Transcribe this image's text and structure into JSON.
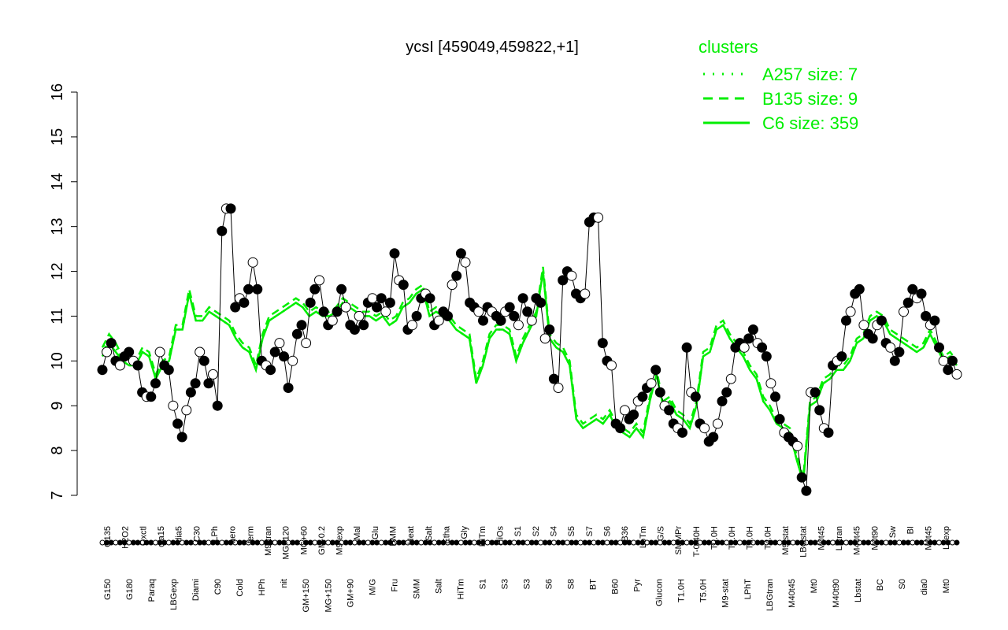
{
  "chart_data": {
    "type": "line",
    "title": "ycsI [459049,459822,+1]",
    "ylim": [
      7,
      16
    ],
    "yticks": [
      7,
      8,
      9,
      10,
      11,
      12,
      13,
      14,
      15,
      16
    ],
    "ylabel": "",
    "xlabel": "",
    "grid": false,
    "legend": {
      "title": "clusters",
      "position": "top-right",
      "color": "#00ee00",
      "entries": [
        {
          "label": "A257 size: 7",
          "style": "dotted"
        },
        {
          "label": "B135 size: 9",
          "style": "dashed"
        },
        {
          "label": "C6 size: 359",
          "style": "solid"
        }
      ]
    },
    "x_labels_upper": [
      "G135",
      "H2O2",
      "Oxctl",
      "dia15",
      "dia5",
      "C30",
      "LPh",
      "aero",
      "ferm",
      "M9-tran",
      "MG+120",
      "MG+60",
      "GM-0.2",
      "M9-exp",
      "Mal",
      "Glu",
      "BMM",
      "Heat",
      "Salt",
      "Etha",
      "Gly",
      "HiTm",
      "HiOs",
      "S1",
      "S2",
      "S4",
      "S5",
      "S7",
      "S6",
      "B36",
      "LoTm",
      "G/S",
      "SMMPr",
      "T-0.40H",
      "T0.0H",
      "T2.0H",
      "T3.0H",
      "T4.0H",
      "M9-stat",
      "LBGstat",
      "M0t45",
      "Lbtran",
      "M40t45",
      "M0t90",
      "Sw",
      "BI",
      "M0t45",
      "Lbexp"
    ],
    "x_labels_lower": [
      "G150",
      "G180",
      "Paraq",
      "LBGexp",
      "Diami",
      "C90",
      "Cold",
      "HPh",
      "nit",
      "GM+150",
      "MG+150",
      "GM+90",
      "M/G",
      "Fru",
      "SMM",
      "Salt",
      "HiTm",
      "S1",
      "S3",
      "S3",
      "S6",
      "S8",
      "BT",
      "B60",
      "Pyr",
      "Glucon",
      "T1.0H",
      "T5.0H",
      "M9-stat",
      "LPhT",
      "LBGtran",
      "M40t45",
      "Mt0",
      "M40t90",
      "Lbstat",
      "BC",
      "S0",
      "dia0",
      "Mt0"
    ],
    "line_color": "#00ee00",
    "series": [
      {
        "style": "solid",
        "values": [
          10.1,
          10.4,
          10.2,
          10.0,
          9.9,
          9.9,
          10.2,
          10.1,
          9.6,
          9.9,
          10.0,
          10.7,
          10.7,
          11.5,
          10.9,
          10.9,
          11.1,
          11.0,
          10.9,
          10.8,
          10.5,
          10.3,
          10.2,
          9.8,
          10.5,
          10.9,
          11.0,
          11.1,
          11.2,
          11.3,
          11.2,
          11.0,
          11.1,
          11.0,
          11.0,
          11.1,
          11.3,
          11.2,
          11.1,
          11.0,
          11.0,
          10.9,
          11.0,
          10.8,
          10.9,
          11.2,
          11.3,
          11.5,
          11.6,
          11.0,
          11.1,
          11.0,
          10.9,
          10.7,
          10.6,
          10.5,
          9.5,
          9.9,
          10.5,
          10.7,
          10.7,
          10.6,
          10.0,
          10.4,
          10.7,
          11.0,
          12.0,
          10.5,
          10.3,
          10.2,
          9.9,
          8.7,
          8.5,
          8.6,
          8.7,
          8.6,
          8.8,
          8.5,
          8.4,
          8.3,
          8.5,
          8.3,
          9.1,
          9.7,
          9.0,
          9.1,
          8.8,
          8.7,
          8.5,
          9.0,
          10.1,
          10.2,
          10.7,
          10.8,
          10.5,
          10.3,
          10.1,
          9.8,
          9.6,
          9.1,
          8.9,
          8.6,
          8.5,
          8.4,
          7.8,
          7.3,
          9.0,
          9.1,
          9.5,
          9.6,
          9.8,
          9.8,
          10.0,
          10.4,
          10.5,
          10.9,
          11.0,
          10.9,
          10.6,
          10.5,
          10.4,
          10.3,
          10.2,
          10.3,
          10.6,
          10.3,
          10.0,
          10.1,
          9.9
        ]
      },
      {
        "style": "dashed",
        "values": [
          10.3,
          10.6,
          10.4,
          10.1,
          10.0,
          10.0,
          10.3,
          10.2,
          9.7,
          10.0,
          10.1,
          10.8,
          10.8,
          11.6,
          11.0,
          11.0,
          11.2,
          11.1,
          11.0,
          10.9,
          10.6,
          10.4,
          10.3,
          9.9,
          10.6,
          11.0,
          11.1,
          11.2,
          11.3,
          11.4,
          11.3,
          11.1,
          11.2,
          11.1,
          11.1,
          11.2,
          11.4,
          11.3,
          11.2,
          11.1,
          11.1,
          11.0,
          11.1,
          10.9,
          11.0,
          11.3,
          11.4,
          11.6,
          11.7,
          11.1,
          11.2,
          11.1,
          11.0,
          10.8,
          10.7,
          10.6,
          9.6,
          10.0,
          10.6,
          10.8,
          10.8,
          10.7,
          10.1,
          10.5,
          10.8,
          11.1,
          12.1,
          10.6,
          10.4,
          10.3,
          10.0,
          8.8,
          8.6,
          8.7,
          8.8,
          8.7,
          8.9,
          8.6,
          8.5,
          8.4,
          8.6,
          8.4,
          9.2,
          9.8,
          9.1,
          9.2,
          8.9,
          8.8,
          8.6,
          9.1,
          10.2,
          10.3,
          10.8,
          10.9,
          10.6,
          10.4,
          10.2,
          9.9,
          9.7,
          9.2,
          9.0,
          8.7,
          8.6,
          8.5,
          7.9,
          7.4,
          9.1,
          9.2,
          9.6,
          9.7,
          9.9,
          9.9,
          10.1,
          10.5,
          10.6,
          11.0,
          11.1,
          11.0,
          10.7,
          10.6,
          10.5,
          10.4,
          10.3,
          10.4,
          10.7,
          10.4,
          10.1,
          10.2,
          10.0
        ]
      },
      {
        "style": "dotted",
        "values": [
          10.2,
          10.5,
          10.3,
          10.0,
          9.9,
          9.9,
          10.2,
          10.1,
          9.6,
          9.9,
          10.0,
          10.7,
          10.7,
          11.5,
          10.9,
          10.9,
          11.1,
          11.0,
          10.9,
          10.8,
          10.5,
          10.3,
          10.2,
          9.8,
          10.5,
          10.9,
          11.0,
          11.1,
          11.2,
          11.3,
          11.2,
          11.0,
          11.1,
          11.0,
          11.0,
          11.1,
          11.3,
          11.2,
          11.1,
          11.0,
          11.0,
          10.9,
          11.0,
          10.8,
          10.9,
          11.2,
          11.3,
          11.5,
          11.6,
          11.0,
          11.1,
          11.0,
          10.9,
          10.7,
          10.6,
          10.5,
          9.5,
          9.9,
          10.5,
          10.7,
          10.7,
          10.6,
          10.0,
          10.4,
          10.7,
          11.0,
          12.0,
          10.5,
          10.3,
          10.2,
          9.9,
          8.7,
          8.5,
          8.6,
          8.7,
          8.6,
          8.8,
          8.5,
          8.4,
          8.3,
          8.5,
          8.3,
          9.1,
          9.7,
          9.0,
          9.1,
          8.8,
          8.7,
          8.5,
          9.0,
          10.1,
          10.2,
          10.7,
          10.8,
          10.5,
          10.3,
          10.1,
          9.8,
          9.6,
          9.1,
          8.9,
          8.6,
          8.5,
          8.4,
          7.8,
          7.3,
          9.0,
          9.1,
          9.5,
          9.6,
          9.8,
          9.8,
          10.0,
          10.4,
          10.5,
          10.9,
          11.0,
          10.9,
          10.6,
          10.5,
          10.4,
          10.3,
          10.2,
          10.3,
          10.6,
          10.3,
          10.0,
          10.1,
          9.9
        ]
      },
      {
        "style": "black-points",
        "values": [
          9.8,
          10.2,
          10.4,
          10.0,
          9.9,
          10.1,
          10.2,
          10.0,
          9.9,
          9.3,
          9.2,
          9.2,
          9.5,
          10.2,
          9.9,
          9.8,
          9.0,
          8.6,
          8.3,
          8.9,
          9.3,
          9.5,
          10.2,
          10.0,
          9.5,
          9.7,
          9.0,
          12.9,
          13.4,
          13.4,
          11.2,
          11.4,
          11.3,
          11.6,
          12.2,
          11.6,
          10.0,
          9.9,
          9.8,
          10.2,
          10.4,
          10.1,
          9.4,
          10.0,
          10.6,
          10.8,
          10.4,
          11.3,
          11.6,
          11.8,
          11.1,
          10.8,
          10.9,
          11.1,
          11.6,
          11.2,
          10.8,
          10.7,
          11.0,
          10.8,
          11.3,
          11.4,
          11.2,
          11.4,
          11.1,
          11.3,
          12.4,
          11.8,
          11.7,
          10.7,
          10.8,
          11.0,
          11.4,
          11.5,
          11.4,
          10.8,
          10.9,
          11.1,
          11.0,
          11.7,
          11.9,
          12.4,
          12.2,
          11.3,
          11.2,
          11.1,
          10.9,
          11.2,
          11.1,
          11.0,
          10.9,
          11.1,
          11.2,
          11.0,
          10.8,
          11.4,
          11.1,
          10.9,
          11.4,
          11.3,
          10.5,
          10.7,
          9.6,
          9.4,
          11.8,
          12.0,
          11.9,
          11.5,
          11.4,
          11.5,
          13.1,
          13.2,
          13.2,
          10.4,
          10.0,
          9.9,
          8.6,
          8.5,
          8.9,
          8.7,
          8.8,
          9.1,
          9.2,
          9.4,
          9.5,
          9.8,
          9.3,
          9.0,
          8.9,
          8.6,
          8.5,
          8.4,
          10.3,
          9.3,
          9.2,
          8.6,
          8.5,
          8.2,
          8.3,
          8.6,
          9.1,
          9.3,
          9.6,
          10.3,
          10.4,
          10.3,
          10.5,
          10.7,
          10.4,
          10.3,
          10.1,
          9.5,
          9.2,
          8.7,
          8.4,
          8.3,
          8.2,
          8.1,
          7.4,
          7.1,
          9.3,
          9.3,
          8.9,
          8.5,
          8.4,
          9.9,
          10.0,
          10.1,
          10.9,
          11.1,
          11.5,
          11.6,
          10.8,
          10.6,
          10.5,
          10.8,
          10.9,
          10.4,
          10.3,
          10.0,
          10.2,
          11.1,
          11.3,
          11.6,
          11.4,
          11.5,
          11.0,
          10.8,
          10.9,
          10.3,
          10.0,
          9.8,
          10.0,
          9.7
        ]
      }
    ]
  }
}
